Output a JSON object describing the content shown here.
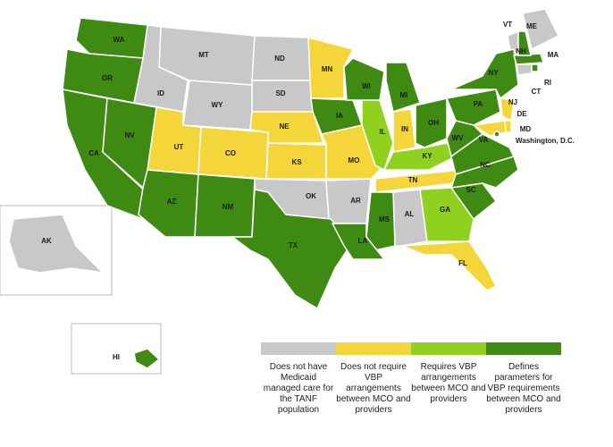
{
  "legend": [
    {
      "label": "Does not have Medicaid managed care for the TANF population",
      "color": "#c8c8c8",
      "states": [
        "MT",
        "ND",
        "SD",
        "ID",
        "WY",
        "OK",
        "AR",
        "AL",
        "AK",
        "VT",
        "ME",
        "CT"
      ]
    },
    {
      "label": "Does not require VBP arrangements between MCO and providers",
      "color": "#f5d63a",
      "states": [
        "MN",
        "NE",
        "UT",
        "CO",
        "KS",
        "MO",
        "IN",
        "TN",
        "FL",
        "NJ",
        "MD",
        "DE"
      ]
    },
    {
      "label": "Requires VBP arrangements between MCO and providers",
      "color": "#8fd11e",
      "states": [
        "IL",
        "KY",
        "GA"
      ]
    },
    {
      "label": "Defines parameters for VBP requirements between MCO and providers",
      "color": "#3f8a12",
      "states": [
        "WA",
        "OR",
        "CA",
        "NV",
        "AZ",
        "NM",
        "TX",
        "IA",
        "WI",
        "MI",
        "OH",
        "PA",
        "NY",
        "WV",
        "VA",
        "NC",
        "SC",
        "MS",
        "LA",
        "HI",
        "MA",
        "NH",
        "RI",
        "Washington, D.C."
      ]
    }
  ]
}
